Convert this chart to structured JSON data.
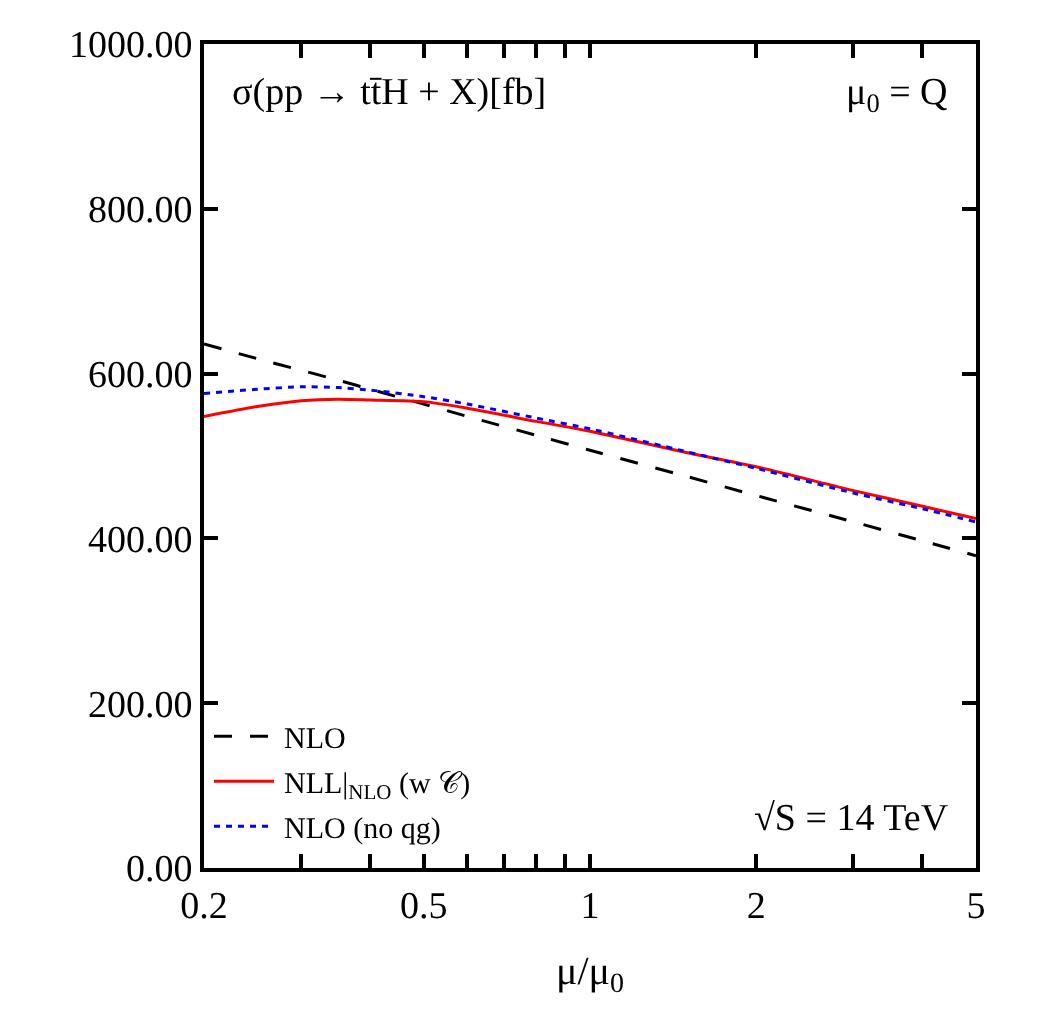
{
  "chart_data": {
    "type": "line",
    "xlabel": "μ/μ$_{0}$",
    "annotations": [
      "σ(pp → tt̄H + X)[fb]",
      "μ$_{0}$ = Q",
      "√S = 14 TeV"
    ],
    "x": [
      0.2,
      0.25,
      0.3,
      0.35,
      0.4,
      0.5,
      0.6,
      0.8,
      1,
      1.5,
      2,
      3,
      4,
      5
    ],
    "series": [
      {
        "name": "NLO",
        "color": "#000000",
        "line_style": "dashed",
        "values": [
          636,
          618,
          604,
          592,
          581,
          563,
          548,
          525,
          507,
          475,
          452,
          420,
          397,
          379
        ]
      },
      {
        "name": "NLL|$_{NLO}$ (w 𝒞)",
        "color": "#ff0000",
        "line_style": "solid",
        "values": [
          548,
          560,
          567,
          569,
          568,
          566,
          558,
          542,
          530,
          504,
          487,
          458,
          439,
          424
        ]
      },
      {
        "name": "NLO (no qg)",
        "color": "#0000ff",
        "line_style": "dotted",
        "values": [
          576,
          581,
          584,
          583,
          580,
          572,
          563,
          546,
          533,
          505,
          485,
          455,
          436,
          420
        ]
      }
    ],
    "log": "x",
    "xlim": [
      0.2,
      5
    ],
    "xticks": [
      0.2,
      {
        "value": 0.3,
        "label": null
      },
      {
        "value": 0.4,
        "label": null
      },
      0.5,
      {
        "value": 0.6,
        "label": null
      },
      {
        "value": 0.7,
        "label": null
      },
      {
        "value": 0.8,
        "label": null
      },
      {
        "value": 0.9,
        "label": null
      },
      1,
      2,
      {
        "value": 3,
        "label": null
      },
      {
        "value": 4,
        "label": null
      },
      5
    ],
    "ylim": [
      0,
      1000
    ],
    "yticks": [
      {
        "value": 0,
        "label": "0.00"
      },
      {
        "value": 200,
        "label": "200.00"
      },
      {
        "value": 400,
        "label": "400.00"
      },
      {
        "value": 600,
        "label": "600.00"
      },
      {
        "value": 800,
        "label": "800.00"
      },
      {
        "value": 1000,
        "label": "1000.00"
      }
    ],
    "legend": "bottom left",
    "marker": "none"
  }
}
